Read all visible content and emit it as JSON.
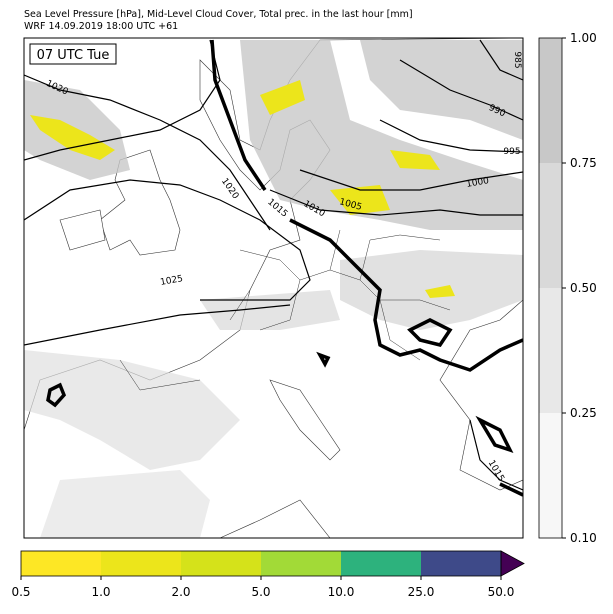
{
  "header": {
    "line1": "Sea Level Pressure [hPa], Mid-Level Cloud Cover, Total prec. in the last hour [mm]",
    "line2": "WRF 14.09.2019 18:00 UTC +61"
  },
  "map": {
    "time_label": "07 UTC Tue",
    "isobar_labels": [
      "1020",
      "1020",
      "1015",
      "1010",
      "1005",
      "1000",
      "995",
      "990",
      "985",
      "1025",
      "1015"
    ]
  },
  "cloud_colorbar": {
    "ticks": [
      {
        "value": 0.1,
        "label": "0.10"
      },
      0.25,
      {
        "value": 0.5,
        "label": "0.50"
      },
      0.75,
      {
        "value": 1,
        "label": "1.00"
      }
    ],
    "colors": [
      "#f7f7f7",
      "#e8e8e8",
      "#d9d9d9",
      "#c8c8c8"
    ]
  },
  "precip_colorbar": {
    "ticks": [
      0.5,
      {
        "value": 1,
        "label": "1.0"
      },
      {
        "value": 2,
        "label": "2.0"
      },
      {
        "value": 5,
        "label": "5.0"
      },
      {
        "value": 10,
        "label": "10.0"
      },
      {
        "value": 25,
        "label": "25.0"
      },
      {
        "value": 50,
        "label": "50.0"
      }
    ],
    "colors": [
      "#fde725",
      "#ece51b",
      "#d5e21a",
      "#a2da37",
      "#2db27d",
      "#3e4a89"
    ],
    "extend_color": "#440154"
  }
}
